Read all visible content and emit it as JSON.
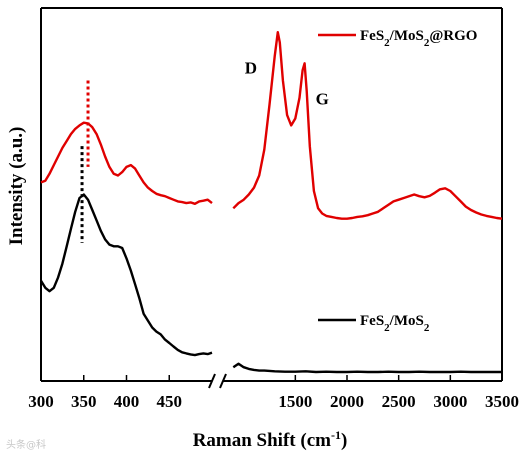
{
  "chart_data": {
    "type": "line",
    "xlabel": "Raman Shift (cm",
    "xlabel_sup": "-1",
    "xlabel_close": ")",
    "ylabel": "Intensity (a.u.)",
    "axis_break": true,
    "segments": [
      {
        "range": [
          300,
          500
        ],
        "ticks": [
          300,
          350,
          400,
          450
        ]
      },
      {
        "range": [
          800,
          3500
        ],
        "ticks": [
          1500,
          2000,
          2500,
          3000,
          3500
        ]
      }
    ],
    "series": [
      {
        "name": "FeS2/MoS2@RGO",
        "name_base": "FeS",
        "name_sub1": "2",
        "name_mid": "/MoS",
        "name_sub2": "2",
        "name_tail": "@RGO",
        "color": "#e00000",
        "points": [
          [
            300,
            0.555
          ],
          [
            305,
            0.56
          ],
          [
            310,
            0.58
          ],
          [
            315,
            0.605
          ],
          [
            320,
            0.63
          ],
          [
            325,
            0.655
          ],
          [
            330,
            0.675
          ],
          [
            335,
            0.695
          ],
          [
            340,
            0.71
          ],
          [
            345,
            0.72
          ],
          [
            350,
            0.728
          ],
          [
            355,
            0.726
          ],
          [
            360,
            0.715
          ],
          [
            365,
            0.695
          ],
          [
            370,
            0.665
          ],
          [
            375,
            0.63
          ],
          [
            380,
            0.6
          ],
          [
            385,
            0.58
          ],
          [
            390,
            0.575
          ],
          [
            395,
            0.585
          ],
          [
            400,
            0.6
          ],
          [
            405,
            0.605
          ],
          [
            410,
            0.595
          ],
          [
            415,
            0.575
          ],
          [
            420,
            0.555
          ],
          [
            425,
            0.54
          ],
          [
            430,
            0.53
          ],
          [
            435,
            0.522
          ],
          [
            440,
            0.518
          ],
          [
            445,
            0.515
          ],
          [
            450,
            0.51
          ],
          [
            455,
            0.505
          ],
          [
            460,
            0.5
          ],
          [
            465,
            0.498
          ],
          [
            470,
            0.495
          ],
          [
            475,
            0.497
          ],
          [
            480,
            0.493
          ],
          [
            485,
            0.5
          ],
          [
            490,
            0.502
          ],
          [
            495,
            0.505
          ],
          [
            500,
            0.495
          ],
          [
            900,
            0.48
          ],
          [
            950,
            0.495
          ],
          [
            1000,
            0.505
          ],
          [
            1050,
            0.52
          ],
          [
            1100,
            0.54
          ],
          [
            1150,
            0.575
          ],
          [
            1200,
            0.65
          ],
          [
            1250,
            0.78
          ],
          [
            1300,
            0.92
          ],
          [
            1330,
            0.99
          ],
          [
            1350,
            0.96
          ],
          [
            1380,
            0.85
          ],
          [
            1420,
            0.75
          ],
          [
            1460,
            0.72
          ],
          [
            1500,
            0.74
          ],
          [
            1540,
            0.8
          ],
          [
            1570,
            0.88
          ],
          [
            1590,
            0.9
          ],
          [
            1610,
            0.82
          ],
          [
            1640,
            0.66
          ],
          [
            1680,
            0.53
          ],
          [
            1720,
            0.48
          ],
          [
            1760,
            0.465
          ],
          [
            1800,
            0.458
          ],
          [
            1850,
            0.455
          ],
          [
            1900,
            0.452
          ],
          [
            1950,
            0.45
          ],
          [
            2000,
            0.45
          ],
          [
            2050,
            0.452
          ],
          [
            2100,
            0.455
          ],
          [
            2150,
            0.457
          ],
          [
            2200,
            0.46
          ],
          [
            2250,
            0.465
          ],
          [
            2300,
            0.47
          ],
          [
            2350,
            0.48
          ],
          [
            2400,
            0.49
          ],
          [
            2450,
            0.5
          ],
          [
            2500,
            0.505
          ],
          [
            2550,
            0.51
          ],
          [
            2600,
            0.515
          ],
          [
            2650,
            0.52
          ],
          [
            2700,
            0.515
          ],
          [
            2750,
            0.512
          ],
          [
            2800,
            0.516
          ],
          [
            2850,
            0.525
          ],
          [
            2900,
            0.535
          ],
          [
            2950,
            0.538
          ],
          [
            3000,
            0.53
          ],
          [
            3050,
            0.515
          ],
          [
            3100,
            0.5
          ],
          [
            3150,
            0.485
          ],
          [
            3200,
            0.475
          ],
          [
            3250,
            0.468
          ],
          [
            3300,
            0.462
          ],
          [
            3350,
            0.458
          ],
          [
            3400,
            0.455
          ],
          [
            3450,
            0.452
          ],
          [
            3500,
            0.45
          ]
        ]
      },
      {
        "name": "FeS2/MoS2",
        "name_base": "FeS",
        "name_sub1": "2",
        "name_mid": "/MoS",
        "name_sub2": "2",
        "name_tail": "",
        "color": "#000000",
        "points": [
          [
            300,
            0.27
          ],
          [
            305,
            0.25
          ],
          [
            310,
            0.24
          ],
          [
            315,
            0.25
          ],
          [
            320,
            0.28
          ],
          [
            325,
            0.32
          ],
          [
            330,
            0.37
          ],
          [
            335,
            0.42
          ],
          [
            340,
            0.47
          ],
          [
            345,
            0.51
          ],
          [
            350,
            0.52
          ],
          [
            355,
            0.505
          ],
          [
            360,
            0.475
          ],
          [
            365,
            0.445
          ],
          [
            370,
            0.415
          ],
          [
            375,
            0.39
          ],
          [
            380,
            0.375
          ],
          [
            385,
            0.37
          ],
          [
            390,
            0.37
          ],
          [
            395,
            0.365
          ],
          [
            400,
            0.335
          ],
          [
            405,
            0.3
          ],
          [
            410,
            0.26
          ],
          [
            415,
            0.22
          ],
          [
            420,
            0.175
          ],
          [
            425,
            0.155
          ],
          [
            430,
            0.135
          ],
          [
            435,
            0.123
          ],
          [
            440,
            0.115
          ],
          [
            445,
            0.1
          ],
          [
            450,
            0.09
          ],
          [
            455,
            0.08
          ],
          [
            460,
            0.07
          ],
          [
            465,
            0.063
          ],
          [
            470,
            0.06
          ],
          [
            475,
            0.057
          ],
          [
            480,
            0.055
          ],
          [
            485,
            0.058
          ],
          [
            490,
            0.06
          ],
          [
            495,
            0.058
          ],
          [
            500,
            0.062
          ],
          [
            900,
            0.02
          ],
          [
            950,
            0.03
          ],
          [
            1000,
            0.02
          ],
          [
            1050,
            0.015
          ],
          [
            1100,
            0.012
          ],
          [
            1150,
            0.01
          ],
          [
            1200,
            0.01
          ],
          [
            1300,
            0.008
          ],
          [
            1400,
            0.007
          ],
          [
            1500,
            0.007
          ],
          [
            1600,
            0.008
          ],
          [
            1700,
            0.006
          ],
          [
            1800,
            0.007
          ],
          [
            1900,
            0.006
          ],
          [
            2000,
            0.006
          ],
          [
            2100,
            0.007
          ],
          [
            2200,
            0.006
          ],
          [
            2300,
            0.006
          ],
          [
            2400,
            0.007
          ],
          [
            2500,
            0.006
          ],
          [
            2600,
            0.006
          ],
          [
            2700,
            0.007
          ],
          [
            2800,
            0.006
          ],
          [
            2900,
            0.006
          ],
          [
            3000,
            0.006
          ],
          [
            3100,
            0.007
          ],
          [
            3200,
            0.006
          ],
          [
            3300,
            0.006
          ],
          [
            3400,
            0.006
          ],
          [
            3500,
            0.006
          ]
        ]
      }
    ],
    "reference_lines": [
      {
        "x": 355,
        "color": "#e00000",
        "style": "dotted",
        "y_from": 0.6,
        "y_to": 0.85
      },
      {
        "x": 348,
        "color": "#000000",
        "style": "dotted",
        "y_from": 0.38,
        "y_to": 0.66
      }
    ],
    "annotations": [
      {
        "text": "D",
        "x": 1070,
        "y": 0.87
      },
      {
        "text": "G",
        "x": 1760,
        "y": 0.78
      }
    ],
    "legend_position": "right",
    "grid": false,
    "ylim": [
      -0.02,
      1.06
    ]
  },
  "watermark": "头条@科"
}
